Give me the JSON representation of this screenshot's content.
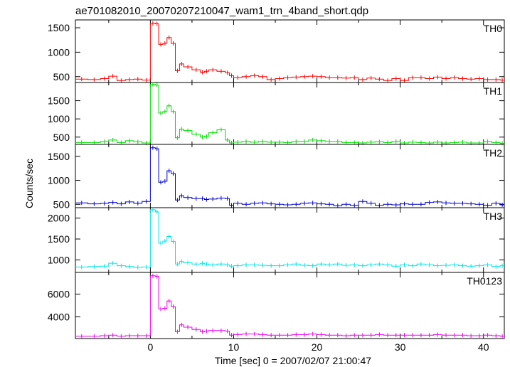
{
  "chart_data": {
    "type": "line",
    "title": "ae701082010_20070207210047_wam1_trn_4band_short.qdp",
    "xlabel": "Time [sec] 0 = 2007/02/07 21:00:47",
    "ylabel": "Counts/sec",
    "xlim": [
      -9,
      42.5
    ],
    "xticks": [
      0,
      10,
      20,
      30,
      40
    ],
    "bin_edges": [
      -9,
      -7.5,
      -6,
      -5,
      -4,
      -3,
      -2,
      -1,
      0,
      0.6,
      1,
      1.5,
      2,
      2.5,
      3,
      3.5,
      4,
      5,
      6,
      6.5,
      7,
      8,
      9,
      9.5,
      10,
      11,
      12,
      13,
      14,
      15,
      16,
      17,
      18,
      19,
      20,
      21,
      22,
      23,
      24,
      25,
      26,
      27,
      28,
      29,
      30,
      31,
      32,
      33,
      34,
      35,
      36,
      37,
      38,
      39,
      40,
      41,
      42,
      42.5
    ],
    "series": [
      {
        "name": "TH0",
        "color": "#ff0000",
        "ylim": [
          380,
          1660
        ],
        "yticks": [
          500,
          1000,
          1500
        ],
        "values": [
          450,
          440,
          460,
          510,
          420,
          440,
          450,
          430,
          1590,
          1580,
          1160,
          1180,
          1300,
          1180,
          620,
          760,
          700,
          640,
          590,
          610,
          640,
          610,
          580,
          520,
          480,
          500,
          520,
          500,
          440,
          460,
          480,
          490,
          500,
          510,
          500,
          480,
          480,
          470,
          480,
          440,
          470,
          450,
          420,
          460,
          420,
          480,
          480,
          460,
          490,
          460,
          480,
          460,
          450,
          460,
          440,
          440,
          430
        ]
      },
      {
        "name": "TH1",
        "color": "#00dd00",
        "ylim": [
          300,
          2000
        ],
        "yticks": [
          500,
          1000,
          1500
        ],
        "values": [
          350,
          350,
          380,
          420,
          350,
          400,
          370,
          340,
          1950,
          1930,
          1160,
          1200,
          1360,
          1200,
          480,
          720,
          680,
          580,
          500,
          520,
          620,
          700,
          420,
          340,
          360,
          380,
          360,
          380,
          360,
          360,
          350,
          380,
          380,
          420,
          400,
          380,
          380,
          350,
          350,
          340,
          360,
          370,
          350,
          380,
          340,
          360,
          350,
          340,
          360,
          340,
          350,
          360,
          340,
          340,
          380,
          350,
          330
        ]
      },
      {
        "name": "TH2",
        "color": "#0000cc",
        "ylim": [
          430,
          1750
        ],
        "yticks": [
          500,
          1000,
          1500
        ],
        "values": [
          530,
          510,
          520,
          540,
          510,
          550,
          520,
          560,
          1680,
          1660,
          960,
          980,
          1200,
          1140,
          590,
          680,
          640,
          620,
          620,
          600,
          610,
          630,
          620,
          480,
          520,
          500,
          520,
          530,
          510,
          500,
          490,
          500,
          520,
          530,
          510,
          500,
          470,
          500,
          480,
          560,
          520,
          480,
          500,
          490,
          510,
          500,
          500,
          540,
          550,
          530,
          520,
          520,
          510,
          500,
          480,
          520,
          490
        ]
      },
      {
        "name": "TH3",
        "color": "#00e5e5",
        "ylim": [
          700,
          2250
        ],
        "yticks": [
          1000,
          1500,
          2000
        ],
        "values": [
          830,
          840,
          850,
          920,
          860,
          840,
          820,
          830,
          2200,
          2150,
          1400,
          1450,
          1560,
          1440,
          900,
          960,
          930,
          900,
          920,
          900,
          880,
          900,
          880,
          850,
          860,
          880,
          880,
          870,
          860,
          860,
          880,
          900,
          870,
          860,
          900,
          880,
          900,
          870,
          880,
          860,
          880,
          900,
          880,
          850,
          880,
          860,
          900,
          880,
          860,
          870,
          880,
          860,
          850,
          860,
          880,
          840,
          860
        ]
      },
      {
        "name": "TH0123",
        "color": "#ee00ee",
        "ylim": [
          2100,
          7900
        ],
        "yticks": [
          4000,
          6000
        ],
        "values": [
          2300,
          2300,
          2350,
          2400,
          2300,
          2350,
          2350,
          2350,
          7600,
          7550,
          4700,
          4750,
          5400,
          4900,
          2700,
          3300,
          3100,
          2900,
          2700,
          2750,
          2800,
          2800,
          2750,
          2400,
          2450,
          2500,
          2500,
          2450,
          2400,
          2400,
          2400,
          2450,
          2450,
          2500,
          2450,
          2400,
          2400,
          2350,
          2400,
          2400,
          2400,
          2450,
          2400,
          2400,
          2400,
          2400,
          2400,
          2400,
          2450,
          2400,
          2400,
          2400,
          2350,
          2350,
          2400,
          2350,
          2300
        ]
      }
    ]
  }
}
